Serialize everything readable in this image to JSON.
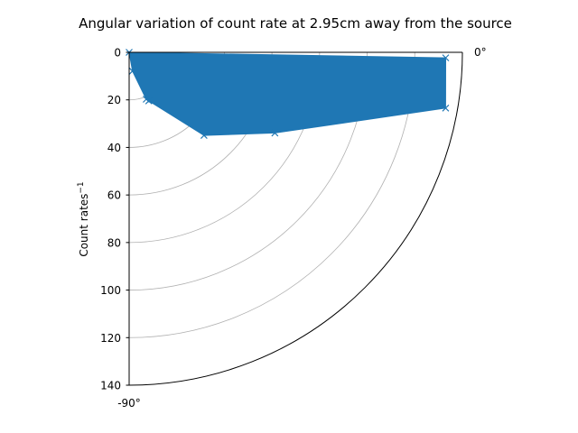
{
  "chart_data": {
    "type": "polar",
    "title": "Angular variation of count rate at 2.95cm away from the source",
    "ylabel": "Count rates",
    "ylabel_superscript": "−1",
    "theta_range_deg": [
      -90,
      0
    ],
    "theta_tick_labels": [
      "0°",
      "-90°"
    ],
    "r_range": [
      0,
      140
    ],
    "r_ticks": [
      0,
      20,
      40,
      60,
      80,
      100,
      120,
      140
    ],
    "r_grid_circles": [
      20,
      40,
      60,
      80,
      100,
      120,
      140
    ],
    "grid": true,
    "series": [
      {
        "color": "#1f77b4",
        "marker": "x",
        "filled": true,
        "points": [
          {
            "theta_deg": -90,
            "r": 0
          },
          {
            "theta_deg": -80,
            "r": 8
          },
          {
            "theta_deg": -70,
            "r": 21
          },
          {
            "theta_deg": -68,
            "r": 22
          },
          {
            "theta_deg": -48,
            "r": 47
          },
          {
            "theta_deg": -29,
            "r": 70
          },
          {
            "theta_deg": -10,
            "r": 135
          },
          {
            "theta_deg": -1,
            "r": 133
          }
        ]
      }
    ]
  }
}
